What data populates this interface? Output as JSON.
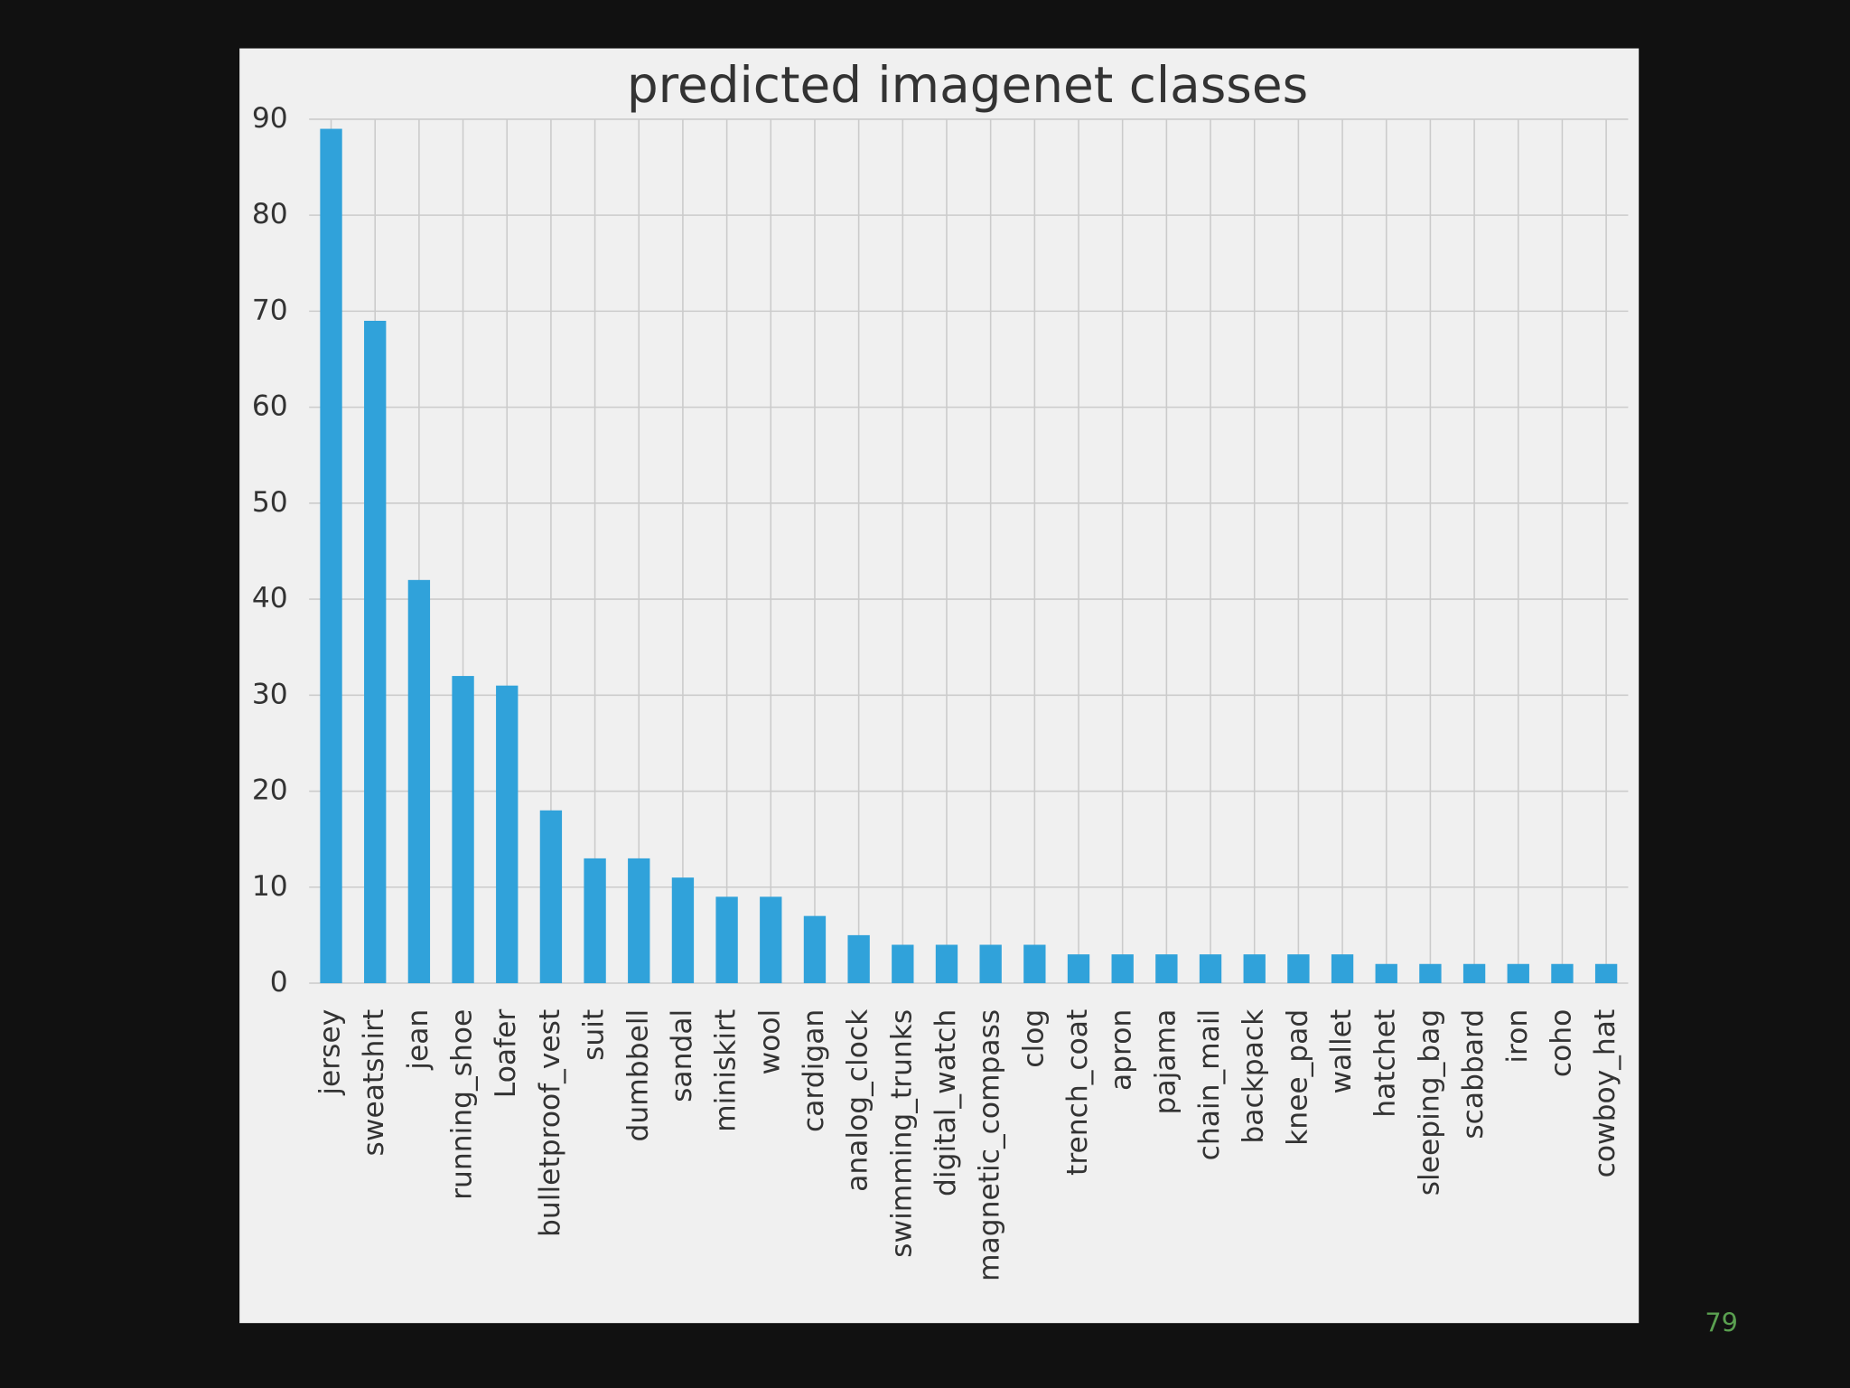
{
  "chart_data": {
    "type": "bar",
    "title": "predicted imagenet classes",
    "categories": [
      "jersey",
      "sweatshirt",
      "jean",
      "running_shoe",
      "Loafer",
      "bulletproof_vest",
      "suit",
      "dumbbell",
      "sandal",
      "miniskirt",
      "wool",
      "cardigan",
      "analog_clock",
      "swimming_trunks",
      "digital_watch",
      "magnetic_compass",
      "clog",
      "trench_coat",
      "apron",
      "pajama",
      "chain_mail",
      "backpack",
      "knee_pad",
      "wallet",
      "hatchet",
      "sleeping_bag",
      "scabbard",
      "iron",
      "coho",
      "cowboy_hat"
    ],
    "values": [
      89,
      69,
      42,
      32,
      31,
      18,
      13,
      13,
      11,
      9,
      9,
      7,
      5,
      4,
      4,
      4,
      4,
      3,
      3,
      3,
      3,
      3,
      3,
      3,
      2,
      2,
      2,
      2,
      2,
      2
    ],
    "color": "#30a2da",
    "ylim": [
      0,
      90
    ],
    "yticks": [
      0,
      10,
      20,
      30,
      40,
      50,
      60,
      70,
      80,
      90
    ],
    "grid": true
  },
  "page_number": "79"
}
